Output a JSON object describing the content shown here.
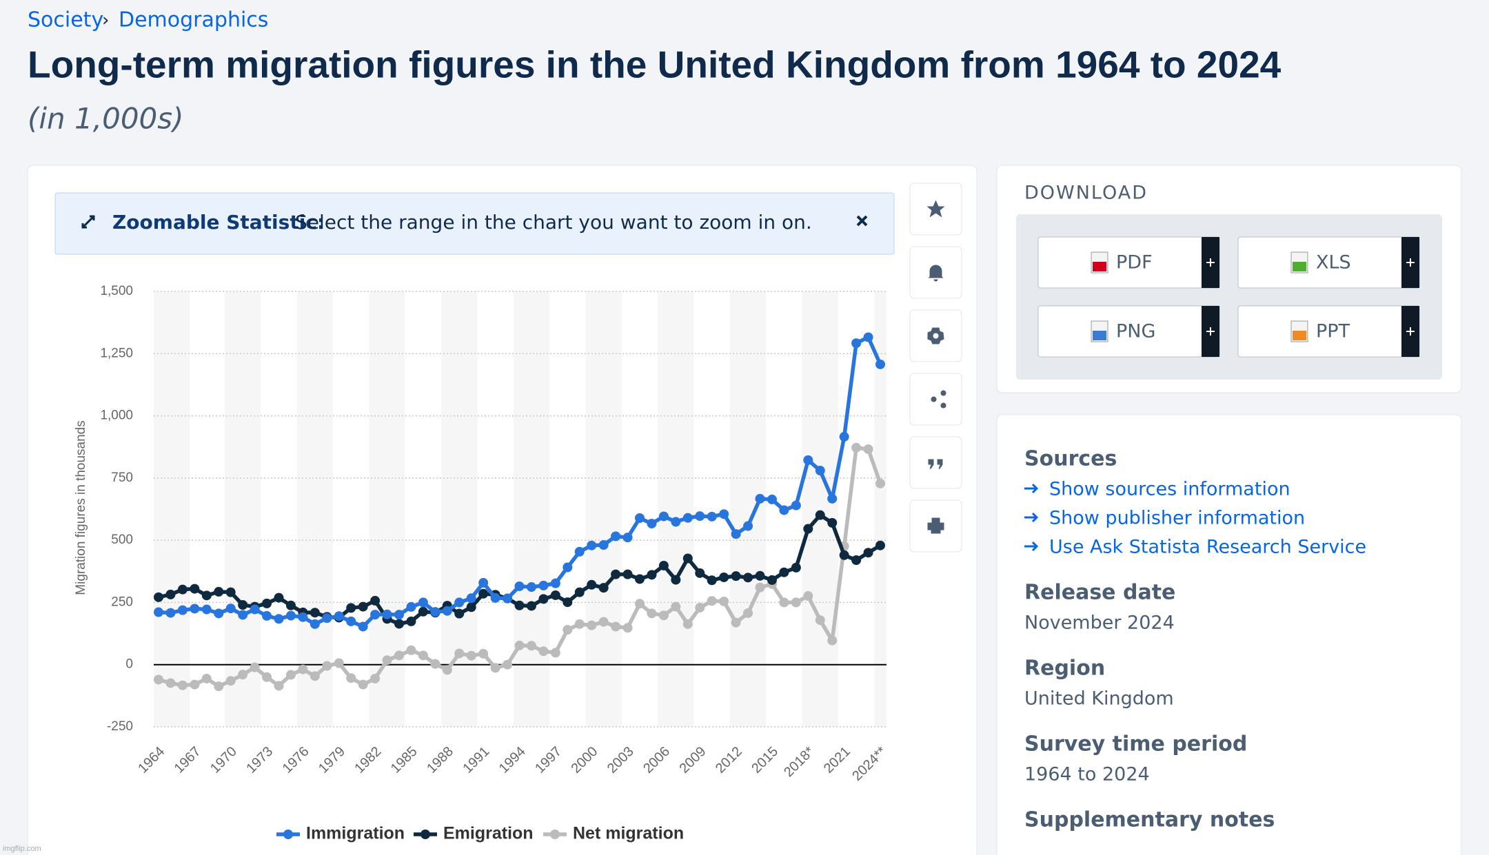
{
  "breadcrumb": {
    "items": [
      "Society",
      "Demographics"
    ],
    "separator": "›"
  },
  "chart_data": {
    "type": "line",
    "title": "Long-term migration figures in the United Kingdom from 1964 to 2024",
    "subtitle": "(in 1,000s)",
    "y_label": "Migration figures in thousands",
    "categories": [
      "1964",
      null,
      null,
      "1967",
      null,
      null,
      "1970",
      null,
      null,
      "1973",
      null,
      null,
      "1976",
      null,
      null,
      "1979",
      null,
      null,
      "1982",
      null,
      null,
      "1985",
      null,
      null,
      "1988",
      null,
      null,
      "1991",
      null,
      null,
      "1994",
      null,
      null,
      "1997",
      null,
      null,
      "2000",
      null,
      null,
      "2003",
      null,
      null,
      "2006",
      null,
      null,
      "2009",
      null,
      null,
      "2012",
      null,
      null,
      "2015",
      null,
      null,
      "2018*",
      null,
      null,
      "2021",
      null,
      null,
      "2024**"
    ],
    "series": [
      {
        "name": "Immigration",
        "color": "#2876dd",
        "values": [
          211,
          208,
          219,
          225,
          222,
          206,
          226,
          200,
          222,
          196,
          184,
          197,
          191,
          163,
          187,
          195,
          174,
          153,
          201,
          202,
          201,
          232,
          250,
          212,
          216,
          250,
          267,
          329,
          268,
          266,
          315,
          312,
          318,
          327,
          391,
          454,
          479,
          481,
          516,
          511,
          589,
          567,
          596,
          574,
          590,
          597,
          595,
          605,
          525,
          557,
          667,
          664,
          621,
          640,
          822,
          780,
          667,
          916,
          1292,
          1316,
          1207
        ]
      },
      {
        "name": "Emigration",
        "color": "#0f2a3f",
        "values": [
          271,
          282,
          302,
          305,
          278,
          293,
          291,
          240,
          233,
          246,
          269,
          238,
          210,
          209,
          192,
          189,
          228,
          233,
          257,
          184,
          164,
          174,
          213,
          209,
          237,
          205,
          231,
          285,
          281,
          266,
          238,
          236,
          264,
          279,
          251,
          291,
          321,
          309,
          363,
          363,
          344,
          361,
          398,
          341,
          427,
          368,
          339,
          351,
          356,
          350,
          357,
          340,
          371,
          390,
          546,
          601,
          570,
          440,
          420,
          450,
          479
        ]
      },
      {
        "name": "Net migration",
        "color": "#bbbbbb",
        "values": [
          -60,
          -74,
          -83,
          -80,
          -56,
          -87,
          -65,
          -40,
          -11,
          -50,
          -85,
          -41,
          -19,
          -46,
          -5,
          6,
          -54,
          -80,
          -56,
          18,
          37,
          58,
          37,
          3,
          -21,
          45,
          36,
          44,
          -13,
          0,
          77,
          76,
          54,
          48,
          140,
          163,
          158,
          172,
          153,
          148,
          245,
          206,
          198,
          233,
          163,
          229,
          256,
          254,
          169,
          207,
          310,
          324,
          250,
          250,
          276,
          179,
          97,
          476,
          872,
          866,
          728
        ]
      }
    ],
    "ylim": [
      -250,
      1500
    ],
    "yticks": [
      -250,
      0,
      250,
      500,
      750,
      {
        "value": 1000,
        "label": "1,000"
      },
      {
        "value": 1250,
        "label": "1,250"
      },
      {
        "value": 1500,
        "label": "1,500"
      }
    ],
    "grid": true,
    "legend": "bottom"
  },
  "zoom_banner": {
    "label": "Zoomable Statistic:",
    "text": "Select the range in the chart you want to zoom in on."
  },
  "download": {
    "title": "DOWNLOAD",
    "buttons": [
      "PDF",
      "XLS",
      "PNG",
      "PPT"
    ]
  },
  "details": {
    "sources_title": "Sources",
    "links": [
      "Show sources information",
      "Show publisher information",
      "Use Ask Statista Research Service"
    ],
    "fields": [
      {
        "label": "Release date",
        "value": "November 2024"
      },
      {
        "label": "Region",
        "value": "United Kingdom"
      },
      {
        "label": "Survey time period",
        "value": "1964 to 2024"
      }
    ],
    "supplementary": "Supplementary notes"
  },
  "watermark": "imgflip.com"
}
